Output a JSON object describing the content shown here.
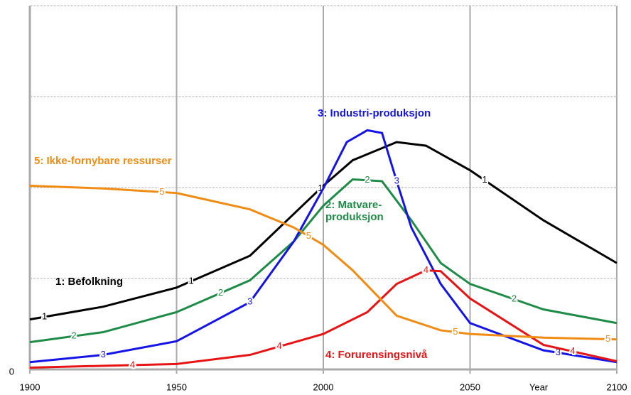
{
  "chart_data": {
    "type": "line",
    "x_label": "Year",
    "xlim": [
      1900,
      2100
    ],
    "xticks": [
      1900,
      1950,
      2000,
      2050,
      2100
    ],
    "ylim": [
      0,
      4
    ],
    "yticks": [
      0
    ],
    "ygrid": [
      1,
      2,
      3,
      4
    ],
    "grid": true,
    "series": [
      {
        "name": "1: Befolkning",
        "marker": "1",
        "color": "#000000",
        "x": [
          1900,
          1925,
          1950,
          1975,
          2000,
          2010,
          2025,
          2035,
          2050,
          2075,
          2100
        ],
        "values": [
          0.55,
          0.69,
          0.9,
          1.25,
          2.02,
          2.3,
          2.5,
          2.46,
          2.19,
          1.64,
          1.17
        ]
      },
      {
        "name": "2: Matvare-produksjon",
        "marker": "2",
        "color": "#1e8c46",
        "x": [
          1900,
          1925,
          1950,
          1975,
          1990,
          2000,
          2010,
          2020,
          2030,
          2040,
          2050,
          2075,
          2100
        ],
        "values": [
          0.3,
          0.41,
          0.63,
          0.98,
          1.41,
          1.8,
          2.09,
          2.07,
          1.64,
          1.17,
          0.94,
          0.66,
          0.51
        ]
      },
      {
        "name": "3: Industri-produksjon",
        "marker": "3",
        "color": "#1414e6",
        "x": [
          1900,
          1925,
          1950,
          1975,
          1990,
          2000,
          2008,
          2015,
          2020,
          2025,
          2030,
          2040,
          2050,
          2075,
          2100
        ],
        "values": [
          0.08,
          0.16,
          0.31,
          0.74,
          1.41,
          1.99,
          2.5,
          2.63,
          2.6,
          2.07,
          1.56,
          0.94,
          0.51,
          0.21,
          0.08
        ]
      },
      {
        "name": "4: Forurensingsnivå",
        "marker": "4",
        "color": "#e61414",
        "x": [
          1900,
          1950,
          1975,
          2000,
          2015,
          2025,
          2035,
          2040,
          2050,
          2075,
          2100
        ],
        "values": [
          0.02,
          0.06,
          0.16,
          0.39,
          0.63,
          0.94,
          1.09,
          1.08,
          0.78,
          0.27,
          0.09
        ]
      },
      {
        "name": "5: Ikke-fornybare ressurser",
        "marker": "5",
        "color": "#f08c14",
        "x": [
          1900,
          1925,
          1950,
          1975,
          1990,
          2000,
          2010,
          2025,
          2040,
          2050,
          2075,
          2100
        ],
        "values": [
          2.02,
          1.99,
          1.94,
          1.76,
          1.56,
          1.37,
          1.09,
          0.59,
          0.43,
          0.39,
          0.35,
          0.33
        ]
      }
    ]
  }
}
